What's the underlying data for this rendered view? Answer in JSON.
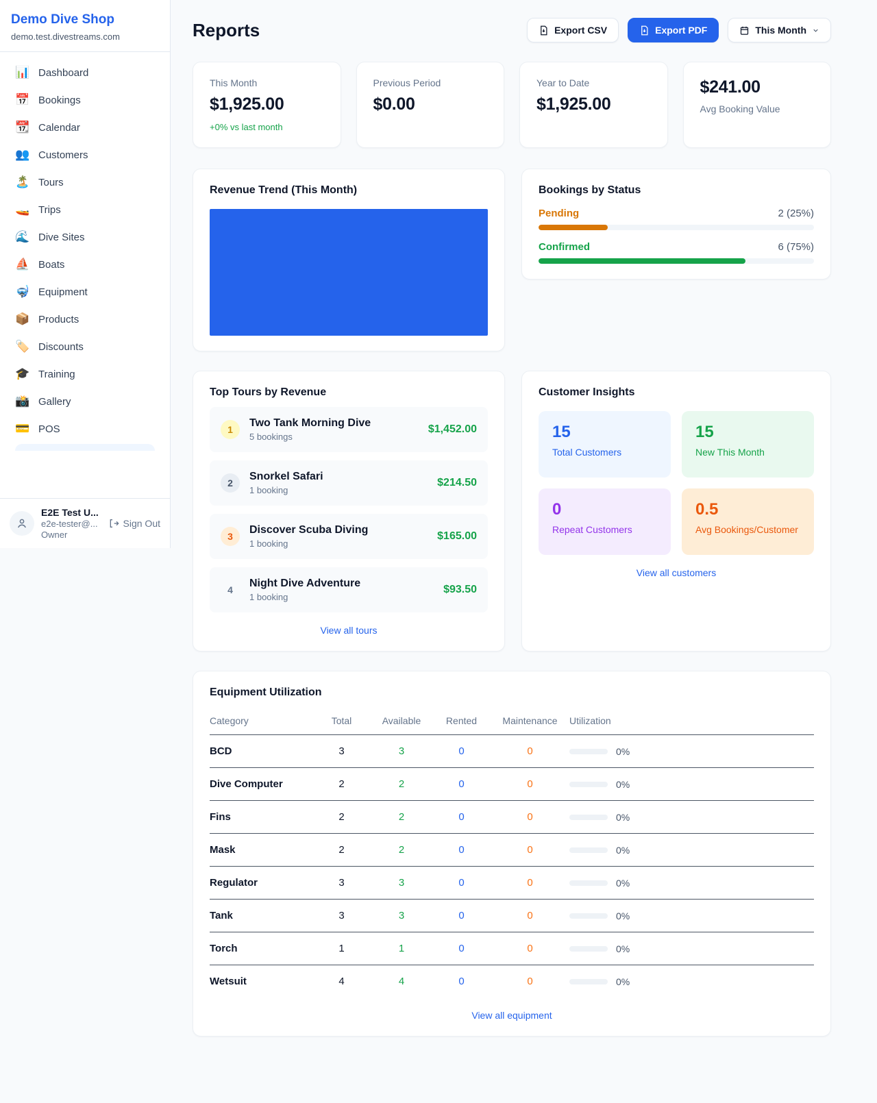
{
  "sidebar": {
    "brand": {
      "name": "Demo Dive Shop",
      "domain": "demo.test.divestreams.com"
    },
    "items": [
      {
        "icon": "📊",
        "label": "Dashboard"
      },
      {
        "icon": "📅",
        "label": "Bookings"
      },
      {
        "icon": "📆",
        "label": "Calendar"
      },
      {
        "icon": "👥",
        "label": "Customers"
      },
      {
        "icon": "🏝️",
        "label": "Tours"
      },
      {
        "icon": "🚤",
        "label": "Trips"
      },
      {
        "icon": "🌊",
        "label": "Dive Sites"
      },
      {
        "icon": "⛵",
        "label": "Boats"
      },
      {
        "icon": "🤿",
        "label": "Equipment"
      },
      {
        "icon": "📦",
        "label": "Products"
      },
      {
        "icon": "🏷️",
        "label": "Discounts"
      },
      {
        "icon": "🎓",
        "label": "Training"
      },
      {
        "icon": "📸",
        "label": "Gallery"
      },
      {
        "icon": "💳",
        "label": "POS"
      }
    ],
    "user": {
      "name": "E2E Test U...",
      "email": "e2e-tester@...",
      "role": "Owner",
      "sign_out": "Sign Out"
    }
  },
  "header": {
    "title": "Reports",
    "export_csv": "Export CSV",
    "export_pdf": "Export PDF",
    "period": "This Month"
  },
  "stats": [
    {
      "label": "This Month",
      "value": "$1,925.00",
      "delta": "+0% vs last month"
    },
    {
      "label": "Previous Period",
      "value": "$0.00"
    },
    {
      "label": "Year to Date",
      "value": "$1,925.00"
    },
    {
      "label": "Avg Booking Value",
      "value": "$241.00"
    }
  ],
  "revenue_trend": {
    "title": "Revenue Trend (This Month)"
  },
  "bookings_by_status": {
    "title": "Bookings by Status",
    "rows": [
      {
        "label": "Pending",
        "count_text": "2 (25%)",
        "pct": 25
      },
      {
        "label": "Confirmed",
        "count_text": "6 (75%)",
        "pct": 75
      }
    ]
  },
  "chart_data": [
    {
      "type": "bar",
      "title": "Revenue Trend (This Month)",
      "categories": [
        "This Month"
      ],
      "values": [
        1925
      ],
      "ylim": [
        0,
        1925
      ],
      "note": "single bar filling entire plot area, solid blue #2563EB, no axes or labels visible"
    },
    {
      "type": "bar",
      "title": "Bookings by Status",
      "categories": [
        "Pending",
        "Confirmed"
      ],
      "values": [
        2,
        6
      ],
      "percent": [
        25,
        75
      ],
      "labels": [
        "2 (25%)",
        "6 (75%)"
      ],
      "colors": [
        "#D97706",
        "#16A34A"
      ]
    }
  ],
  "top_tours": {
    "title": "Top Tours by Revenue",
    "rows": [
      {
        "rank": "1",
        "name": "Two Tank Morning Dive",
        "bookings": "5 bookings",
        "revenue": "$1,452.00"
      },
      {
        "rank": "2",
        "name": "Snorkel Safari",
        "bookings": "1 booking",
        "revenue": "$214.50"
      },
      {
        "rank": "3",
        "name": "Discover Scuba Diving",
        "bookings": "1 booking",
        "revenue": "$165.00"
      },
      {
        "rank": "4",
        "name": "Night Dive Adventure",
        "bookings": "1 booking",
        "revenue": "$93.50"
      }
    ],
    "link": "View all tours"
  },
  "customer_insights": {
    "title": "Customer Insights",
    "tiles": [
      {
        "value": "15",
        "label": "Total Customers"
      },
      {
        "value": "15",
        "label": "New This Month"
      },
      {
        "value": "0",
        "label": "Repeat Customers"
      },
      {
        "value": "0.5",
        "label": "Avg Bookings/Customer"
      }
    ],
    "link": "View all customers"
  },
  "equipment": {
    "title": "Equipment Utilization",
    "headers": [
      "Category",
      "Total",
      "Available",
      "Rented",
      "Maintenance",
      "Utilization"
    ],
    "rows": [
      {
        "category": "BCD",
        "total": "3",
        "available": "3",
        "rented": "0",
        "maintenance": "0",
        "utilization": "0%"
      },
      {
        "category": "Dive Computer",
        "total": "2",
        "available": "2",
        "rented": "0",
        "maintenance": "0",
        "utilization": "0%"
      },
      {
        "category": "Fins",
        "total": "2",
        "available": "2",
        "rented": "0",
        "maintenance": "0",
        "utilization": "0%"
      },
      {
        "category": "Mask",
        "total": "2",
        "available": "2",
        "rented": "0",
        "maintenance": "0",
        "utilization": "0%"
      },
      {
        "category": "Regulator",
        "total": "3",
        "available": "3",
        "rented": "0",
        "maintenance": "0",
        "utilization": "0%"
      },
      {
        "category": "Tank",
        "total": "3",
        "available": "3",
        "rented": "0",
        "maintenance": "0",
        "utilization": "0%"
      },
      {
        "category": "Torch",
        "total": "1",
        "available": "1",
        "rented": "0",
        "maintenance": "0",
        "utilization": "0%"
      },
      {
        "category": "Wetsuit",
        "total": "4",
        "available": "4",
        "rented": "0",
        "maintenance": "0",
        "utilization": "0%"
      }
    ],
    "link": "View all equipment"
  },
  "colors": {
    "accent": "#2563EB",
    "green": "#16A34A",
    "pending_orange": "#D97706",
    "maintenance_orange": "#F97316",
    "purple": "#9333EA",
    "deep_orange": "#EA580C",
    "page_background": "#F8FAFC"
  }
}
